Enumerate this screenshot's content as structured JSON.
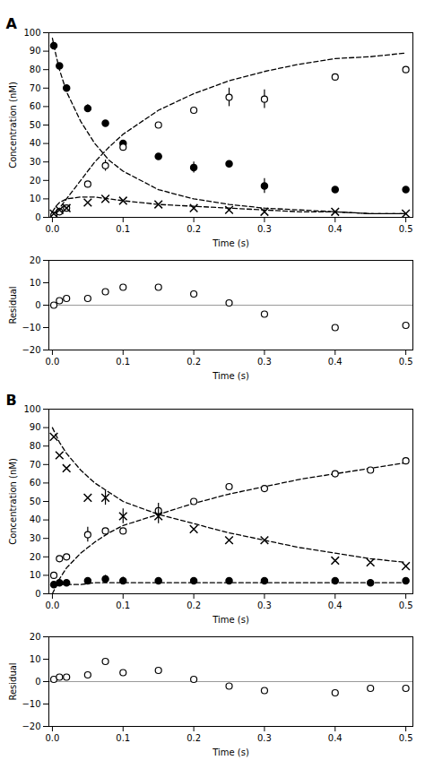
{
  "chart_data": [
    {
      "type": "scatter",
      "title": "A",
      "xlabel": "Time (s)",
      "ylabel": "Concentration (nM)",
      "xlim": [
        -0.005,
        0.51
      ],
      "ylim": [
        0,
        100
      ],
      "xticks": [
        {
          "value": 0,
          "label": "0.0"
        },
        0.1,
        0.2,
        0.3,
        0.4,
        0.5
      ],
      "yticks": [
        0,
        10,
        20,
        30,
        40,
        50,
        60,
        70,
        80,
        90,
        100
      ],
      "grid": false,
      "hlines": [
        {
          "y": 0,
          "color": "gray"
        }
      ],
      "series": [
        {
          "type": "line",
          "line_style": "dashed",
          "color": "black",
          "x": [
            0.0,
            0.005,
            0.01,
            0.02,
            0.04,
            0.06,
            0.08,
            0.1,
            0.15,
            0.2,
            0.25,
            0.3,
            0.35,
            0.4,
            0.45,
            0.5
          ],
          "values": [
            97,
            88,
            80,
            68,
            52,
            40,
            31,
            25,
            15,
            10,
            7,
            5,
            4,
            3,
            2,
            2
          ]
        },
        {
          "type": "line",
          "line_style": "dashed",
          "color": "black",
          "x": [
            0.0,
            0.005,
            0.01,
            0.02,
            0.04,
            0.06,
            0.08,
            0.1,
            0.15,
            0.2,
            0.25,
            0.3,
            0.35,
            0.4,
            0.45,
            0.5
          ],
          "values": [
            0,
            3,
            5,
            10,
            20,
            30,
            38,
            45,
            58,
            67,
            74,
            79,
            83,
            86,
            87,
            89
          ]
        },
        {
          "type": "line",
          "line_style": "dashed",
          "color": "black",
          "x": [
            0.0,
            0.005,
            0.01,
            0.02,
            0.04,
            0.06,
            0.08,
            0.1,
            0.15,
            0.2,
            0.25,
            0.3,
            0.35,
            0.4,
            0.45,
            0.5
          ],
          "values": [
            3,
            6,
            8,
            10,
            11,
            11,
            10,
            9,
            7,
            6,
            5,
            4,
            3,
            3,
            2,
            2
          ]
        },
        {
          "type": "scatter",
          "marker": "filled_circle",
          "color": "black",
          "x": [
            0.002,
            0.01,
            0.02,
            0.05,
            0.075,
            0.1,
            0.15,
            0.2,
            0.25,
            0.3,
            0.4,
            0.5
          ],
          "values": [
            93,
            82,
            70,
            59,
            51,
            40,
            33,
            27,
            29,
            17,
            15,
            15
          ],
          "yerr": [
            0,
            0,
            0,
            2,
            0,
            0,
            0,
            3,
            0,
            4,
            0,
            0
          ]
        },
        {
          "type": "scatter",
          "marker": "open_circle",
          "color": "black",
          "x": [
            0.002,
            0.01,
            0.02,
            0.05,
            0.075,
            0.1,
            0.15,
            0.2,
            0.25,
            0.3,
            0.4,
            0.5
          ],
          "values": [
            1,
            3,
            5,
            18,
            28,
            38,
            50,
            58,
            65,
            64,
            76,
            80
          ],
          "yerr": [
            0,
            0,
            0,
            0,
            3,
            0,
            0,
            0,
            5,
            5,
            0,
            0
          ]
        },
        {
          "type": "scatter",
          "marker": "cross",
          "color": "black",
          "x": [
            0.002,
            0.01,
            0.02,
            0.05,
            0.075,
            0.1,
            0.15,
            0.2,
            0.25,
            0.3,
            0.4,
            0.5
          ],
          "values": [
            2,
            4,
            5,
            8,
            10,
            9,
            7,
            5,
            4,
            3,
            3,
            2
          ],
          "yerr": [
            0,
            0,
            0,
            0,
            0,
            0,
            0,
            0,
            0,
            0,
            0,
            0
          ]
        }
      ]
    },
    {
      "type": "scatter",
      "xlabel": "Time (s)",
      "ylabel": "Residual",
      "xlim": [
        -0.005,
        0.51
      ],
      "ylim": [
        -20,
        20
      ],
      "xticks": [
        {
          "value": 0,
          "label": "0.0"
        },
        0.1,
        0.2,
        0.3,
        0.4,
        0.5
      ],
      "yticks": [
        -20,
        -10,
        0,
        10,
        20
      ],
      "grid": false,
      "hlines": [
        {
          "y": 0,
          "color": "gray"
        }
      ],
      "series": [
        {
          "type": "scatter",
          "marker": "open_circle",
          "color": "black",
          "x": [
            0.002,
            0.01,
            0.02,
            0.05,
            0.075,
            0.1,
            0.15,
            0.2,
            0.25,
            0.3,
            0.4,
            0.5
          ],
          "values": [
            0,
            2,
            3,
            3,
            6,
            8,
            8,
            5,
            1,
            -4,
            -10,
            -9
          ]
        }
      ]
    },
    {
      "type": "scatter",
      "title": "B",
      "xlabel": "Time (s)",
      "ylabel": "Concentration (nM)",
      "xlim": [
        -0.005,
        0.51
      ],
      "ylim": [
        0,
        100
      ],
      "xticks": [
        {
          "value": 0,
          "label": "0.0"
        },
        0.1,
        0.2,
        0.3,
        0.4,
        0.5
      ],
      "yticks": [
        0,
        10,
        20,
        30,
        40,
        50,
        60,
        70,
        80,
        90,
        100
      ],
      "grid": false,
      "hlines": [
        {
          "y": 0,
          "color": "gray"
        }
      ],
      "series": [
        {
          "type": "line",
          "line_style": "dashed",
          "color": "black",
          "x": [
            0.0,
            0.005,
            0.01,
            0.02,
            0.04,
            0.06,
            0.08,
            0.1,
            0.15,
            0.2,
            0.25,
            0.3,
            0.35,
            0.4,
            0.45,
            0.5
          ],
          "values": [
            5,
            5,
            5,
            5,
            5,
            6,
            6,
            6,
            6,
            6,
            6,
            6,
            6,
            6,
            6,
            6
          ]
        },
        {
          "type": "line",
          "line_style": "dashed",
          "color": "black",
          "x": [
            0.0,
            0.005,
            0.01,
            0.02,
            0.04,
            0.06,
            0.08,
            0.1,
            0.15,
            0.2,
            0.25,
            0.3,
            0.35,
            0.4,
            0.45,
            0.5
          ],
          "values": [
            0,
            4,
            8,
            14,
            22,
            28,
            33,
            37,
            43,
            49,
            54,
            58,
            62,
            65,
            68,
            71
          ]
        },
        {
          "type": "line",
          "line_style": "dashed",
          "color": "black",
          "x": [
            0.0,
            0.005,
            0.01,
            0.02,
            0.04,
            0.06,
            0.08,
            0.1,
            0.15,
            0.2,
            0.25,
            0.3,
            0.35,
            0.4,
            0.45,
            0.5
          ],
          "values": [
            90,
            86,
            82,
            76,
            67,
            60,
            55,
            50,
            43,
            38,
            33,
            29,
            25,
            22,
            19,
            17
          ]
        },
        {
          "type": "scatter",
          "marker": "filled_circle",
          "color": "black",
          "x": [
            0.002,
            0.01,
            0.02,
            0.05,
            0.075,
            0.1,
            0.15,
            0.2,
            0.25,
            0.3,
            0.4,
            0.45,
            0.5
          ],
          "values": [
            5,
            6,
            6,
            7,
            8,
            7,
            7,
            7,
            7,
            7,
            7,
            6,
            7
          ],
          "yerr": [
            0,
            0,
            0,
            0,
            2,
            2,
            0,
            0,
            0,
            0,
            0,
            0,
            0
          ]
        },
        {
          "type": "scatter",
          "marker": "open_circle",
          "color": "black",
          "x": [
            0.002,
            0.01,
            0.02,
            0.05,
            0.075,
            0.1,
            0.15,
            0.2,
            0.25,
            0.3,
            0.4,
            0.45,
            0.5
          ],
          "values": [
            10,
            19,
            20,
            32,
            34,
            34,
            45,
            50,
            58,
            57,
            65,
            67,
            72
          ],
          "yerr": [
            0,
            0,
            0,
            4,
            0,
            0,
            4,
            0,
            0,
            0,
            0,
            0,
            0
          ]
        },
        {
          "type": "scatter",
          "marker": "cross",
          "color": "black",
          "x": [
            0.002,
            0.01,
            0.02,
            0.05,
            0.075,
            0.1,
            0.15,
            0.2,
            0.25,
            0.3,
            0.4,
            0.45,
            0.5
          ],
          "values": [
            85,
            75,
            68,
            52,
            52,
            42,
            42,
            35,
            29,
            29,
            18,
            17,
            15
          ],
          "yerr": [
            0,
            0,
            0,
            0,
            4,
            4,
            4,
            0,
            0,
            0,
            0,
            0,
            0
          ]
        }
      ]
    },
    {
      "type": "scatter",
      "xlabel": "Time (s)",
      "ylabel": "Residual",
      "xlim": [
        -0.005,
        0.51
      ],
      "ylim": [
        -20,
        20
      ],
      "xticks": [
        {
          "value": 0,
          "label": "0.0"
        },
        0.1,
        0.2,
        0.3,
        0.4,
        0.5
      ],
      "yticks": [
        -20,
        -10,
        0,
        10,
        20
      ],
      "grid": false,
      "hlines": [
        {
          "y": 0,
          "color": "gray"
        }
      ],
      "series": [
        {
          "type": "scatter",
          "marker": "open_circle",
          "color": "black",
          "x": [
            0.002,
            0.01,
            0.02,
            0.05,
            0.075,
            0.1,
            0.15,
            0.2,
            0.25,
            0.3,
            0.4,
            0.45,
            0.5
          ],
          "values": [
            1,
            2,
            2,
            3,
            9,
            4,
            5,
            1,
            -2,
            -4,
            -5,
            -3,
            -3
          ]
        }
      ]
    }
  ]
}
